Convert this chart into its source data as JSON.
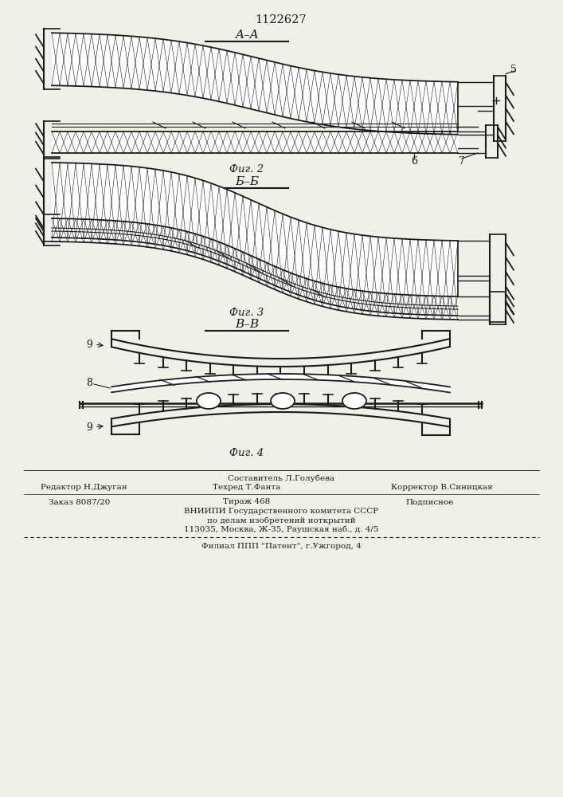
{
  "title": "1122627",
  "bg_color": "#f0efe8",
  "line_color": "#1a1a1a",
  "fig2_label": "Фиг. 2",
  "fig3_label": "Фиг. 3",
  "fig4_label": "Фиг. 4",
  "section_aa": "A–A",
  "section_bb": "Б–Б",
  "section_vv": "В–В",
  "label5": "5",
  "label6": "6",
  "label7": "7",
  "label8": "8",
  "label9": "9",
  "footer_comp": "Составитель Л.Голубева",
  "footer_ed": "Редактор Н.Джуган",
  "footer_tech": "Техред Т.Фанта",
  "footer_corr": "Корректор В.Синицкая",
  "footer_order": "Заказ 8087/20",
  "footer_circ": "Тираж 468",
  "footer_sign": "Подписное",
  "footer_org1": "ВНИИПИ Государственного комитета СССР",
  "footer_org2": "по делам изобретений иоткрытий",
  "footer_addr": "113035, Москва, Ж-35, Раушская наб., д. 4/5",
  "footer_branch": "Филиал ППП \"Патент\", г.Ужгород, 4"
}
